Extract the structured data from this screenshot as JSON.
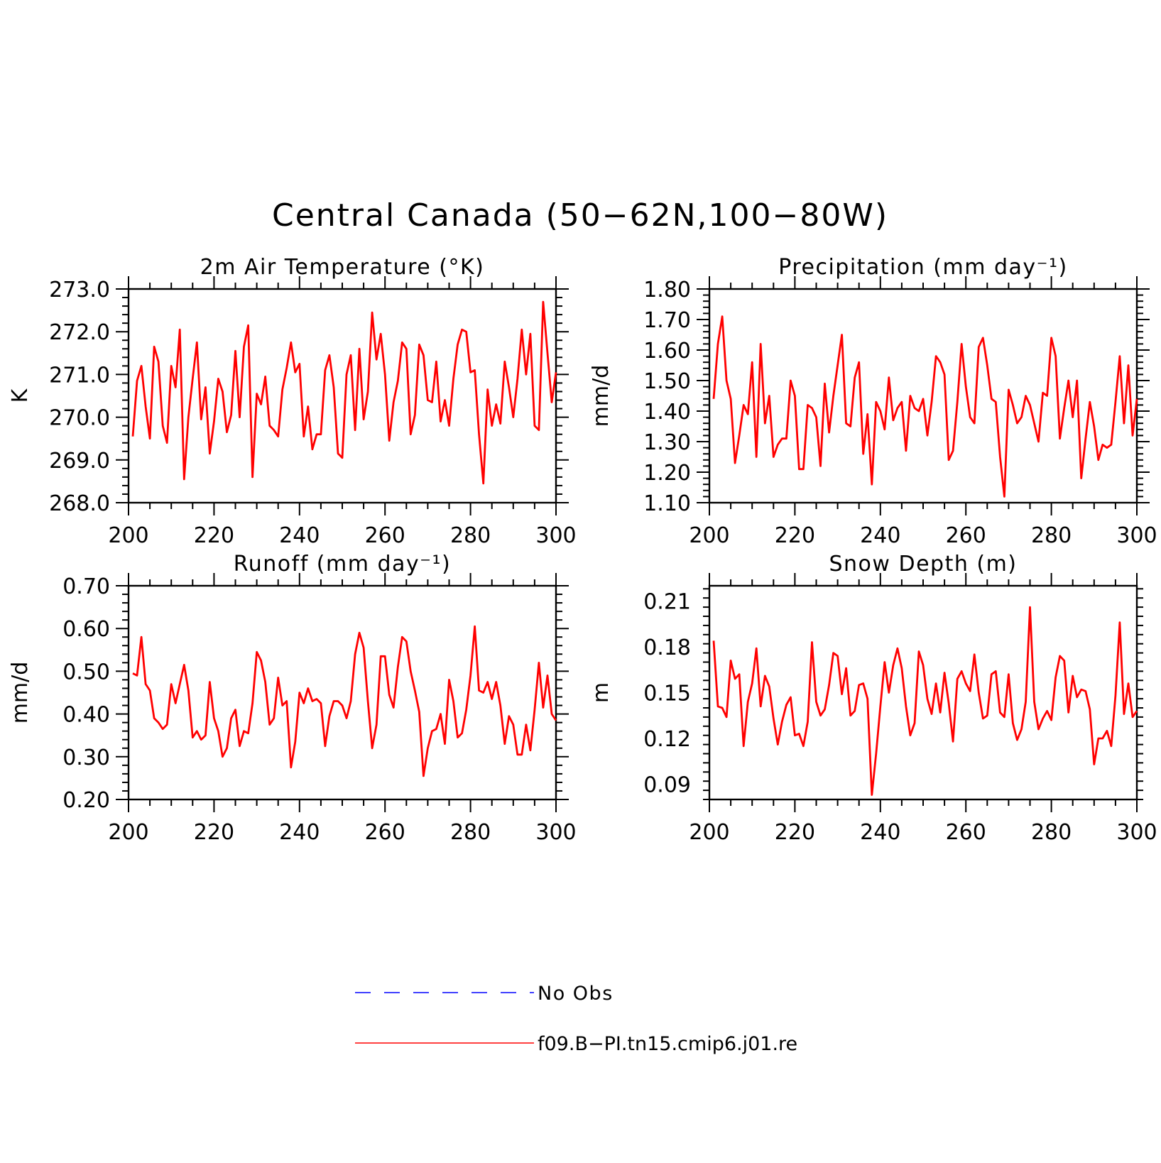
{
  "figure": {
    "title": "Central Canada (50−62N,100−80W)"
  },
  "legend": {
    "items": [
      {
        "label": "No Obs",
        "color": "#0000ff",
        "style": "dashed"
      },
      {
        "label": "f09.B−PI.tn15.cmip6.j01.re",
        "color": "#ff0000",
        "style": "solid"
      }
    ]
  },
  "chart_data": [
    {
      "type": "line",
      "title": "2m Air Temperature (°K)",
      "ylabel": "K",
      "xlabel": "",
      "xlim": [
        200,
        300
      ],
      "ylim": [
        268.0,
        273.0
      ],
      "xticks": [
        "200",
        "220",
        "240",
        "260",
        "280",
        "300"
      ],
      "yticks": [
        "268.0",
        "269.0",
        "270.0",
        "271.0",
        "272.0",
        "273.0"
      ],
      "series": [
        {
          "color": "#ff0000",
          "x_start": 201,
          "values": [
            269.55,
            270.85,
            271.2,
            270.25,
            269.5,
            271.65,
            271.3,
            269.8,
            269.4,
            271.2,
            270.7,
            272.05,
            268.55,
            270.0,
            270.9,
            271.75,
            269.95,
            270.7,
            269.15,
            269.9,
            270.9,
            270.6,
            269.65,
            270.05,
            271.55,
            270.0,
            271.65,
            272.15,
            268.6,
            270.55,
            270.3,
            270.95,
            269.8,
            269.7,
            269.55,
            270.65,
            271.15,
            271.75,
            271.05,
            271.25,
            269.55,
            270.25,
            269.25,
            269.6,
            269.6,
            271.1,
            271.45,
            270.7,
            269.15,
            269.05,
            271.0,
            271.45,
            269.7,
            271.6,
            269.95,
            270.6,
            272.45,
            271.35,
            271.95,
            271.0,
            269.45,
            270.35,
            270.85,
            271.75,
            271.6,
            269.6,
            270.05,
            271.7,
            271.45,
            270.4,
            270.35,
            271.3,
            269.9,
            270.4,
            269.8,
            270.9,
            271.7,
            272.05,
            272.0,
            271.05,
            271.1,
            269.6,
            268.45,
            270.65,
            269.8,
            270.3,
            269.85,
            271.3,
            270.7,
            270.0,
            270.9,
            272.05,
            271.0,
            271.95,
            269.8,
            269.7,
            272.7,
            271.5,
            270.35,
            271.05
          ]
        }
      ]
    },
    {
      "type": "line",
      "title": "Precipitation (mm day⁻¹)",
      "ylabel": "mm/d",
      "xlabel": "",
      "xlim": [
        200,
        300
      ],
      "ylim": [
        1.1,
        1.8
      ],
      "xticks": [
        "200",
        "220",
        "240",
        "260",
        "280",
        "300"
      ],
      "yticks": [
        "1.10",
        "1.20",
        "1.30",
        "1.40",
        "1.50",
        "1.60",
        "1.70",
        "1.80"
      ],
      "series": [
        {
          "color": "#ff0000",
          "x_start": 201,
          "values": [
            1.44,
            1.62,
            1.71,
            1.5,
            1.44,
            1.23,
            1.32,
            1.42,
            1.39,
            1.56,
            1.25,
            1.62,
            1.36,
            1.45,
            1.25,
            1.29,
            1.31,
            1.31,
            1.5,
            1.45,
            1.21,
            1.21,
            1.42,
            1.41,
            1.38,
            1.22,
            1.49,
            1.33,
            1.45,
            1.55,
            1.65,
            1.36,
            1.35,
            1.51,
            1.56,
            1.26,
            1.39,
            1.16,
            1.43,
            1.4,
            1.34,
            1.51,
            1.37,
            1.41,
            1.43,
            1.27,
            1.45,
            1.41,
            1.4,
            1.44,
            1.32,
            1.43,
            1.58,
            1.56,
            1.52,
            1.24,
            1.27,
            1.43,
            1.62,
            1.48,
            1.38,
            1.36,
            1.61,
            1.64,
            1.55,
            1.44,
            1.43,
            1.25,
            1.12,
            1.47,
            1.42,
            1.36,
            1.38,
            1.45,
            1.42,
            1.36,
            1.3,
            1.46,
            1.45,
            1.64,
            1.58,
            1.31,
            1.41,
            1.5,
            1.38,
            1.5,
            1.18,
            1.31,
            1.43,
            1.35,
            1.24,
            1.29,
            1.28,
            1.29,
            1.43,
            1.58,
            1.36,
            1.55,
            1.32,
            1.44
          ]
        }
      ]
    },
    {
      "type": "line",
      "title": "Runoff (mm day⁻¹)",
      "ylabel": "mm/d",
      "xlabel": "",
      "xlim": [
        200,
        300
      ],
      "ylim": [
        0.2,
        0.7
      ],
      "xticks": [
        "200",
        "220",
        "240",
        "260",
        "280",
        "300"
      ],
      "yticks": [
        "0.20",
        "0.30",
        "0.40",
        "0.50",
        "0.60",
        "0.70"
      ],
      "series": [
        {
          "color": "#ff0000",
          "x_start": 201,
          "values": [
            0.495,
            0.49,
            0.58,
            0.47,
            0.455,
            0.39,
            0.38,
            0.365,
            0.375,
            0.47,
            0.425,
            0.47,
            0.515,
            0.455,
            0.345,
            0.36,
            0.34,
            0.35,
            0.475,
            0.39,
            0.36,
            0.3,
            0.32,
            0.39,
            0.41,
            0.325,
            0.36,
            0.355,
            0.425,
            0.545,
            0.525,
            0.475,
            0.375,
            0.39,
            0.485,
            0.42,
            0.43,
            0.275,
            0.335,
            0.45,
            0.425,
            0.46,
            0.43,
            0.435,
            0.425,
            0.325,
            0.395,
            0.43,
            0.43,
            0.42,
            0.39,
            0.43,
            0.54,
            0.59,
            0.555,
            0.43,
            0.32,
            0.375,
            0.535,
            0.535,
            0.445,
            0.415,
            0.51,
            0.58,
            0.57,
            0.5,
            0.455,
            0.405,
            0.255,
            0.32,
            0.36,
            0.365,
            0.4,
            0.33,
            0.48,
            0.43,
            0.345,
            0.355,
            0.41,
            0.49,
            0.605,
            0.455,
            0.45,
            0.475,
            0.435,
            0.475,
            0.42,
            0.33,
            0.395,
            0.375,
            0.305,
            0.305,
            0.375,
            0.315,
            0.41,
            0.52,
            0.415,
            0.49,
            0.4,
            0.385
          ]
        }
      ]
    },
    {
      "type": "line",
      "title": "Snow Depth (m)",
      "ylabel": "m",
      "xlabel": "",
      "xlim": [
        200,
        300
      ],
      "ylim": [
        0.08,
        0.22
      ],
      "xticks": [
        "200",
        "220",
        "240",
        "260",
        "280",
        "300"
      ],
      "yticks": [
        "0.09",
        "0.12",
        "0.15",
        "0.18",
        "0.21"
      ],
      "series": [
        {
          "color": "#ff0000",
          "x_start": 201,
          "values": [
            0.184,
            0.141,
            0.14,
            0.134,
            0.171,
            0.159,
            0.162,
            0.115,
            0.144,
            0.156,
            0.179,
            0.141,
            0.161,
            0.154,
            0.133,
            0.116,
            0.131,
            0.142,
            0.147,
            0.122,
            0.123,
            0.115,
            0.131,
            0.183,
            0.144,
            0.135,
            0.139,
            0.155,
            0.176,
            0.174,
            0.149,
            0.166,
            0.135,
            0.138,
            0.155,
            0.156,
            0.146,
            0.083,
            0.11,
            0.141,
            0.17,
            0.15,
            0.168,
            0.179,
            0.166,
            0.141,
            0.122,
            0.13,
            0.177,
            0.168,
            0.146,
            0.136,
            0.156,
            0.137,
            0.163,
            0.143,
            0.118,
            0.159,
            0.164,
            0.156,
            0.151,
            0.175,
            0.15,
            0.133,
            0.135,
            0.162,
            0.164,
            0.137,
            0.134,
            0.162,
            0.13,
            0.119,
            0.126,
            0.144,
            0.206,
            0.144,
            0.126,
            0.133,
            0.138,
            0.132,
            0.16,
            0.174,
            0.171,
            0.137,
            0.161,
            0.147,
            0.152,
            0.151,
            0.139,
            0.103,
            0.12,
            0.12,
            0.125,
            0.115,
            0.148,
            0.196,
            0.136,
            0.156,
            0.134,
            0.138
          ]
        }
      ]
    }
  ]
}
